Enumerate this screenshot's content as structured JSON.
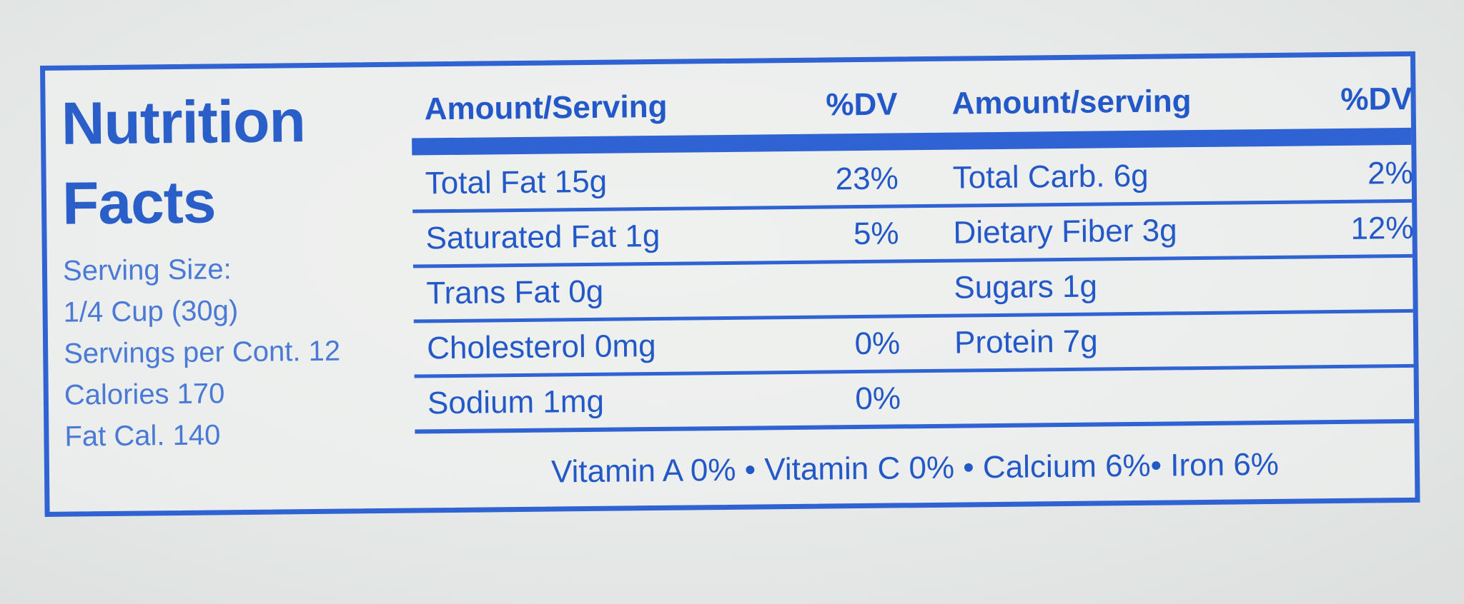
{
  "title_line1": "Nutrition",
  "title_line2": "Facts",
  "serving": {
    "serving_size_label": "Serving Size:",
    "serving_size_value": "1/4 Cup (30g)",
    "servings_per_container": "Servings per Cont. 12",
    "calories": "Calories 170",
    "fat_calories": "Fat Cal. 140"
  },
  "header": {
    "amount_left": "Amount/Serving",
    "dv_left": "%DV",
    "amount_right": "Amount/serving",
    "dv_right": "%DV"
  },
  "rows": [
    {
      "name1": "Total Fat 15g",
      "dv1": "23%",
      "name2": "Total Carb. 6g",
      "dv2": "2%"
    },
    {
      "name1": "Saturated Fat 1g",
      "dv1": "5%",
      "name2": "Dietary Fiber 3g",
      "dv2": "12%"
    },
    {
      "name1": "Trans Fat 0g",
      "dv1": "",
      "name2": "Sugars 1g",
      "dv2": ""
    },
    {
      "name1": "Cholesterol 0mg",
      "dv1": "0%",
      "name2": "Protein 7g",
      "dv2": ""
    },
    {
      "name1": "Sodium 1mg",
      "dv1": "0%",
      "name2": "",
      "dv2": ""
    }
  ],
  "vitamins": "Vitamin A 0% • Vitamin C 0% • Calcium 6%• Iron 6%",
  "colors": {
    "ink": "#2f62d2",
    "background": "#e8ebea"
  }
}
